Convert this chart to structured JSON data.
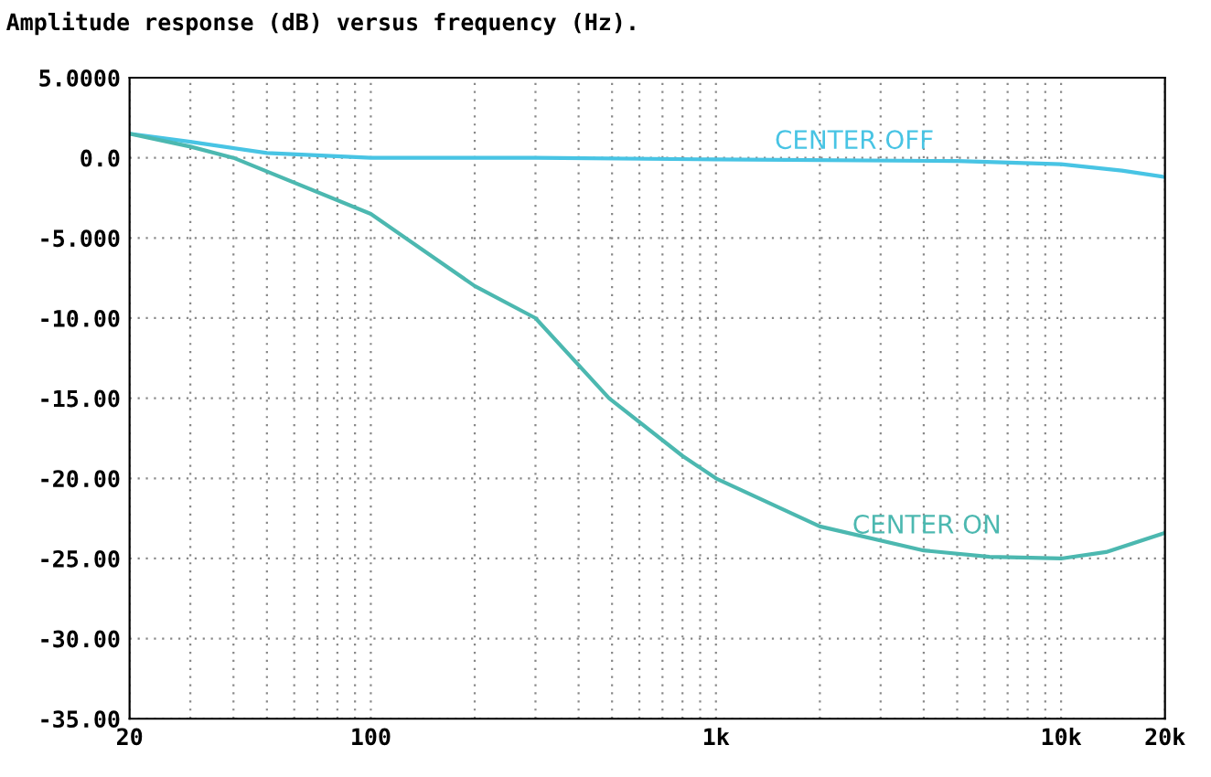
{
  "chart_data": {
    "type": "line",
    "title": "Amplitude response (dB) versus frequency (Hz).",
    "log": "x",
    "grid": true,
    "legend": false,
    "line_style": "solid",
    "marker": "none",
    "xlim": [
      20,
      20000
    ],
    "ylim": [
      -35,
      5
    ],
    "xticks": [
      20,
      {
        "value": 30,
        "label": null
      },
      {
        "value": 40,
        "label": null
      },
      {
        "value": 50,
        "label": null
      },
      {
        "value": 60,
        "label": null
      },
      {
        "value": 70,
        "label": null
      },
      {
        "value": 80,
        "label": null
      },
      {
        "value": 90,
        "label": null
      },
      100,
      {
        "value": 200,
        "label": null
      },
      {
        "value": 300,
        "label": null
      },
      {
        "value": 400,
        "label": null
      },
      {
        "value": 500,
        "label": null
      },
      {
        "value": 600,
        "label": null
      },
      {
        "value": 700,
        "label": null
      },
      {
        "value": 800,
        "label": null
      },
      {
        "value": 900,
        "label": null
      },
      {
        "value": 1000,
        "label": "1k"
      },
      {
        "value": 2000,
        "label": null
      },
      {
        "value": 3000,
        "label": null
      },
      {
        "value": 4000,
        "label": null
      },
      {
        "value": 5000,
        "label": null
      },
      {
        "value": 6000,
        "label": null
      },
      {
        "value": 7000,
        "label": null
      },
      {
        "value": 8000,
        "label": null
      },
      {
        "value": 9000,
        "label": null
      },
      {
        "value": 10000,
        "label": "10k"
      },
      {
        "value": 20000,
        "label": "20k"
      }
    ],
    "yticks": [
      {
        "value": 5,
        "label": "5.0000"
      },
      {
        "value": 0,
        "label": "0.0"
      },
      {
        "value": -5,
        "label": "-5.000"
      },
      {
        "value": -10,
        "label": "-10.00"
      },
      {
        "value": -15,
        "label": "-15.00"
      },
      {
        "value": -20,
        "label": "-20.00"
      },
      {
        "value": -25,
        "label": "-25.00"
      },
      {
        "value": -30,
        "label": "-30.00"
      },
      {
        "value": -35,
        "label": "-35.00"
      }
    ],
    "series": [
      {
        "name": "CENTER OFF",
        "color": "#48c4e4",
        "x": [
          20,
          30,
          50,
          100,
          300,
          1000,
          5000,
          10000,
          15000,
          20000
        ],
        "values": [
          1.5,
          1.0,
          0.3,
          0,
          0,
          -0.1,
          -0.2,
          -0.4,
          -0.8,
          -1.2
        ]
      },
      {
        "name": "CENTER ON",
        "color": "#4cb8b0",
        "x": [
          20,
          30,
          40,
          100,
          200,
          300,
          490,
          800,
          1000,
          2000,
          4000,
          6200,
          10000,
          13500,
          20000
        ],
        "values": [
          1.5,
          0.7,
          0,
          -3.5,
          -8,
          -10,
          -15,
          -18.6,
          -20,
          -23,
          -24.5,
          -24.9,
          -25,
          -24.6,
          -23.4
        ]
      }
    ]
  }
}
